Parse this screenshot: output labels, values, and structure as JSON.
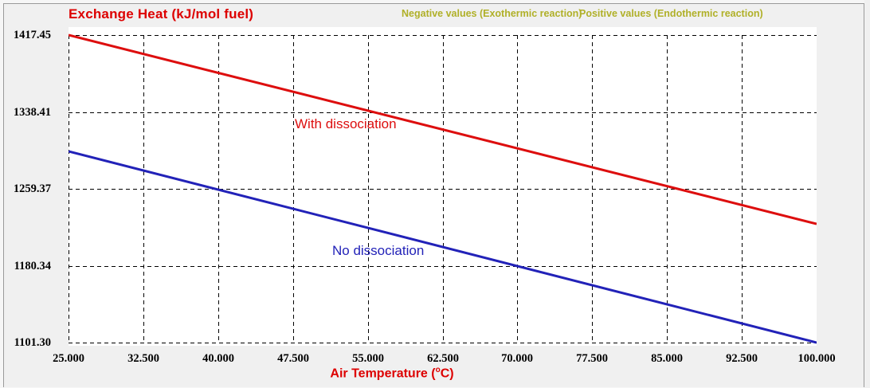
{
  "header": {
    "title": "Exchange Heat (kJ/mol fuel)",
    "legend_negative": "Negative values (Exothermic reaction)",
    "legend_positive": "Positive values (Endothermic reaction)"
  },
  "annotations": {
    "with_dissociation": "With dissociation",
    "no_dissociation": "No dissociation"
  },
  "x_axis": {
    "title_prefix": "Air Temperature (",
    "title_sup": "o",
    "title_suffix": "C)"
  },
  "chart_data": {
    "type": "line",
    "title": "Exchange Heat (kJ/mol fuel)",
    "xlabel": "Air Temperature (°C)",
    "ylabel": "Exchange Heat (kJ/mol fuel)",
    "xlim": [
      25,
      100
    ],
    "ylim": [
      1101.3,
      1417.45
    ],
    "x_ticks": [
      "25.000",
      "32.500",
      "40.000",
      "47.500",
      "55.000",
      "62.500",
      "70.000",
      "77.500",
      "85.000",
      "92.500",
      "100.000"
    ],
    "y_ticks": [
      "1417.45",
      "1338.41",
      "1259.37",
      "1180.34",
      "1101.30"
    ],
    "grid": "dashed-black",
    "legend_position": "top",
    "series": [
      {
        "name": "With dissociation",
        "color": "#dd0e0e",
        "points": [
          [
            25,
            1417.45
          ],
          [
            100,
            1223.3
          ]
        ]
      },
      {
        "name": "No dissociation",
        "color": "#2222b8",
        "points": [
          [
            25,
            1297.9
          ],
          [
            100,
            1101.3
          ]
        ]
      }
    ],
    "colors": {
      "title": "#dd0000",
      "legend_text": "#b0b028",
      "grid": "#000000",
      "plot_background": "#ffffff",
      "panel_background": "#f0f0f0"
    }
  }
}
